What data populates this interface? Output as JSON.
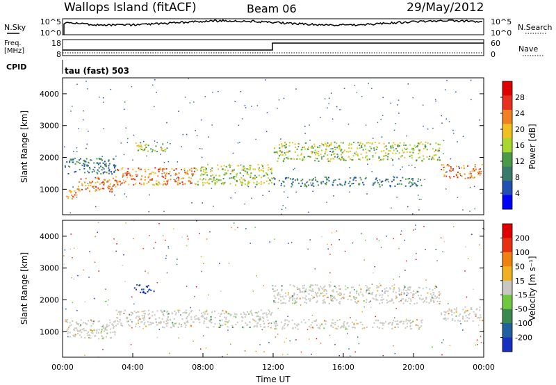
{
  "header": {
    "site": "Wallops Island (fitACF)",
    "beam": "Beam 06",
    "date": "29/May/2012"
  },
  "nsky": {
    "label": "N.Sky",
    "right_label": "N.Search",
    "ticks_left": [
      "10^5",
      "10^0"
    ],
    "ticks_right": [
      "10^5",
      "10^0"
    ]
  },
  "freq": {
    "label_line1": "Freq.",
    "label_line2": "[MHz]",
    "ticks_left": [
      "18",
      "8"
    ],
    "ticks_right": [
      "60",
      "0"
    ],
    "right_label": "Nave"
  },
  "cpid": {
    "label": "CPID",
    "value": "tau (fast) 503"
  },
  "colors": {
    "background": "#ffffff",
    "ground_scatter": "#c8c8c0"
  },
  "chart_data": [
    {
      "type": "heatmap",
      "name": "power",
      "ylabel": "Slant Range [km]",
      "xlabel": "",
      "y_ticks": [
        "1000",
        "2000",
        "3000",
        "4000"
      ],
      "ylim": [
        200,
        4500
      ],
      "xlim": [
        0,
        24
      ],
      "colorbar": {
        "label": "Power [dB]",
        "ticks": [
          "4",
          "8",
          "12",
          "16",
          "20",
          "24",
          "28"
        ],
        "colors": [
          "#0000ff",
          "#2050b0",
          "#3a7a6a",
          "#4a9a4a",
          "#a8d830",
          "#f0c020",
          "#f08020",
          "#e83020",
          "#e00000"
        ]
      },
      "bands": [
        {
          "t0": 0.1,
          "t1": 0.8,
          "r0": 700,
          "r1": 1000,
          "level": "high"
        },
        {
          "t0": 0.8,
          "t1": 3.0,
          "r0": 900,
          "r1": 1400,
          "level": "high"
        },
        {
          "t0": 3.0,
          "t1": 7.5,
          "r0": 1150,
          "r1": 1700,
          "level": "high"
        },
        {
          "t0": 7.5,
          "t1": 11.9,
          "r0": 1150,
          "r1": 1800,
          "level": "mid"
        },
        {
          "t0": 0.1,
          "t1": 3.0,
          "r0": 1500,
          "r1": 2000,
          "level": "low"
        },
        {
          "t0": 4.1,
          "t1": 6.0,
          "r0": 2200,
          "r1": 2500,
          "level": "mid"
        },
        {
          "t0": 12.0,
          "t1": 21.5,
          "r0": 1900,
          "r1": 2500,
          "level": "mid"
        },
        {
          "t0": 12.0,
          "t1": 20.5,
          "r0": 1100,
          "r1": 1400,
          "level": "low"
        },
        {
          "t0": 21.5,
          "t1": 23.9,
          "r0": 1350,
          "r1": 1800,
          "level": "high"
        }
      ]
    },
    {
      "type": "heatmap",
      "name": "velocity",
      "ylabel": "Slant Range [km]",
      "xlabel": "Time UT",
      "x_ticks": [
        "00:00",
        "04:00",
        "08:00",
        "12:00",
        "16:00",
        "20:00",
        "00:00"
      ],
      "y_ticks": [
        "1000",
        "2000",
        "3000",
        "4000"
      ],
      "ylim": [
        200,
        4500
      ],
      "xlim": [
        0,
        24
      ],
      "colorbar": {
        "label": "Velocity [m s⁻¹]",
        "ticks": [
          "200",
          "100",
          "50",
          "15",
          "-15",
          "-50",
          "-100",
          "-200"
        ],
        "colors": [
          "#1830c0",
          "#2060a0",
          "#3a8a50",
          "#70c840",
          "#c8c8c0",
          "#f0b020",
          "#f08010",
          "#e83010",
          "#e00000"
        ]
      },
      "bands": [
        {
          "t0": 0.1,
          "t1": 3.0,
          "r0": 800,
          "r1": 1400,
          "level": "ground"
        },
        {
          "t0": 3.0,
          "t1": 11.9,
          "r0": 1150,
          "r1": 1700,
          "level": "ground"
        },
        {
          "t0": 4.0,
          "t1": 5.2,
          "r0": 2200,
          "r1": 2500,
          "level": "fast"
        },
        {
          "t0": 12.0,
          "t1": 21.5,
          "r0": 1900,
          "r1": 2500,
          "level": "ground"
        },
        {
          "t0": 12.0,
          "t1": 20.5,
          "r0": 1100,
          "r1": 1400,
          "level": "ground"
        },
        {
          "t0": 21.5,
          "t1": 23.9,
          "r0": 1350,
          "r1": 1800,
          "level": "ground"
        }
      ]
    }
  ]
}
